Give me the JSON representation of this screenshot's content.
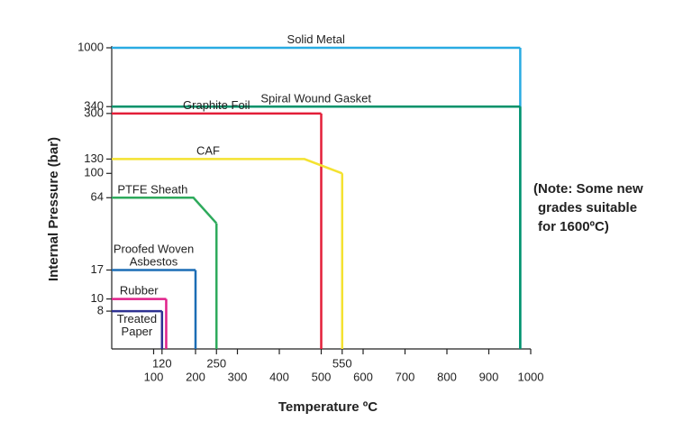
{
  "chart_data": {
    "type": "line",
    "xlabel": "Temperature ºC",
    "ylabel": "Internal Pressure (bar)",
    "xlim": [
      0,
      1000
    ],
    "xticks": [
      100,
      200,
      300,
      400,
      500,
      600,
      700,
      800,
      900,
      1000
    ],
    "xmarks": [
      120,
      250,
      550
    ],
    "ylim": [
      4,
      1000
    ],
    "logy": true,
    "yticks": [
      8,
      10,
      17,
      64,
      100,
      130,
      300,
      340,
      1000
    ],
    "annotation": [
      "(Note: Some new",
      "grades suitable",
      "for 1600ºC)"
    ],
    "series": [
      {
        "name": "Solid Metal",
        "color": "#29abe2",
        "x": [
          0,
          975
        ],
        "values": [
          1000,
          1000
        ]
      },
      {
        "name": "Spiral Wound Gasket",
        "color": "#00926a",
        "x": [
          0,
          975
        ],
        "values": [
          340,
          340
        ]
      },
      {
        "name": "Graphite Foil",
        "color": "#e31e38",
        "x": [
          0,
          500
        ],
        "values": [
          300,
          300
        ]
      },
      {
        "name": "CAF",
        "color": "#f4e231",
        "x": [
          0,
          460,
          550
        ],
        "values": [
          130,
          130,
          100
        ]
      },
      {
        "name": "PTFE Sheath",
        "color": "#2eaa5c",
        "x": [
          0,
          195,
          250
        ],
        "values": [
          64,
          64,
          40
        ]
      },
      {
        "name": "Proofed Woven Asbestos",
        "color": "#1c6db5",
        "x": [
          0,
          200
        ],
        "values": [
          17,
          17
        ]
      },
      {
        "name": "Rubber",
        "color": "#e0218a",
        "x": [
          0,
          130
        ],
        "values": [
          10,
          10
        ]
      },
      {
        "name": "Treated Paper",
        "color": "#2e3192",
        "x": [
          0,
          120
        ],
        "values": [
          8,
          8
        ]
      }
    ]
  }
}
